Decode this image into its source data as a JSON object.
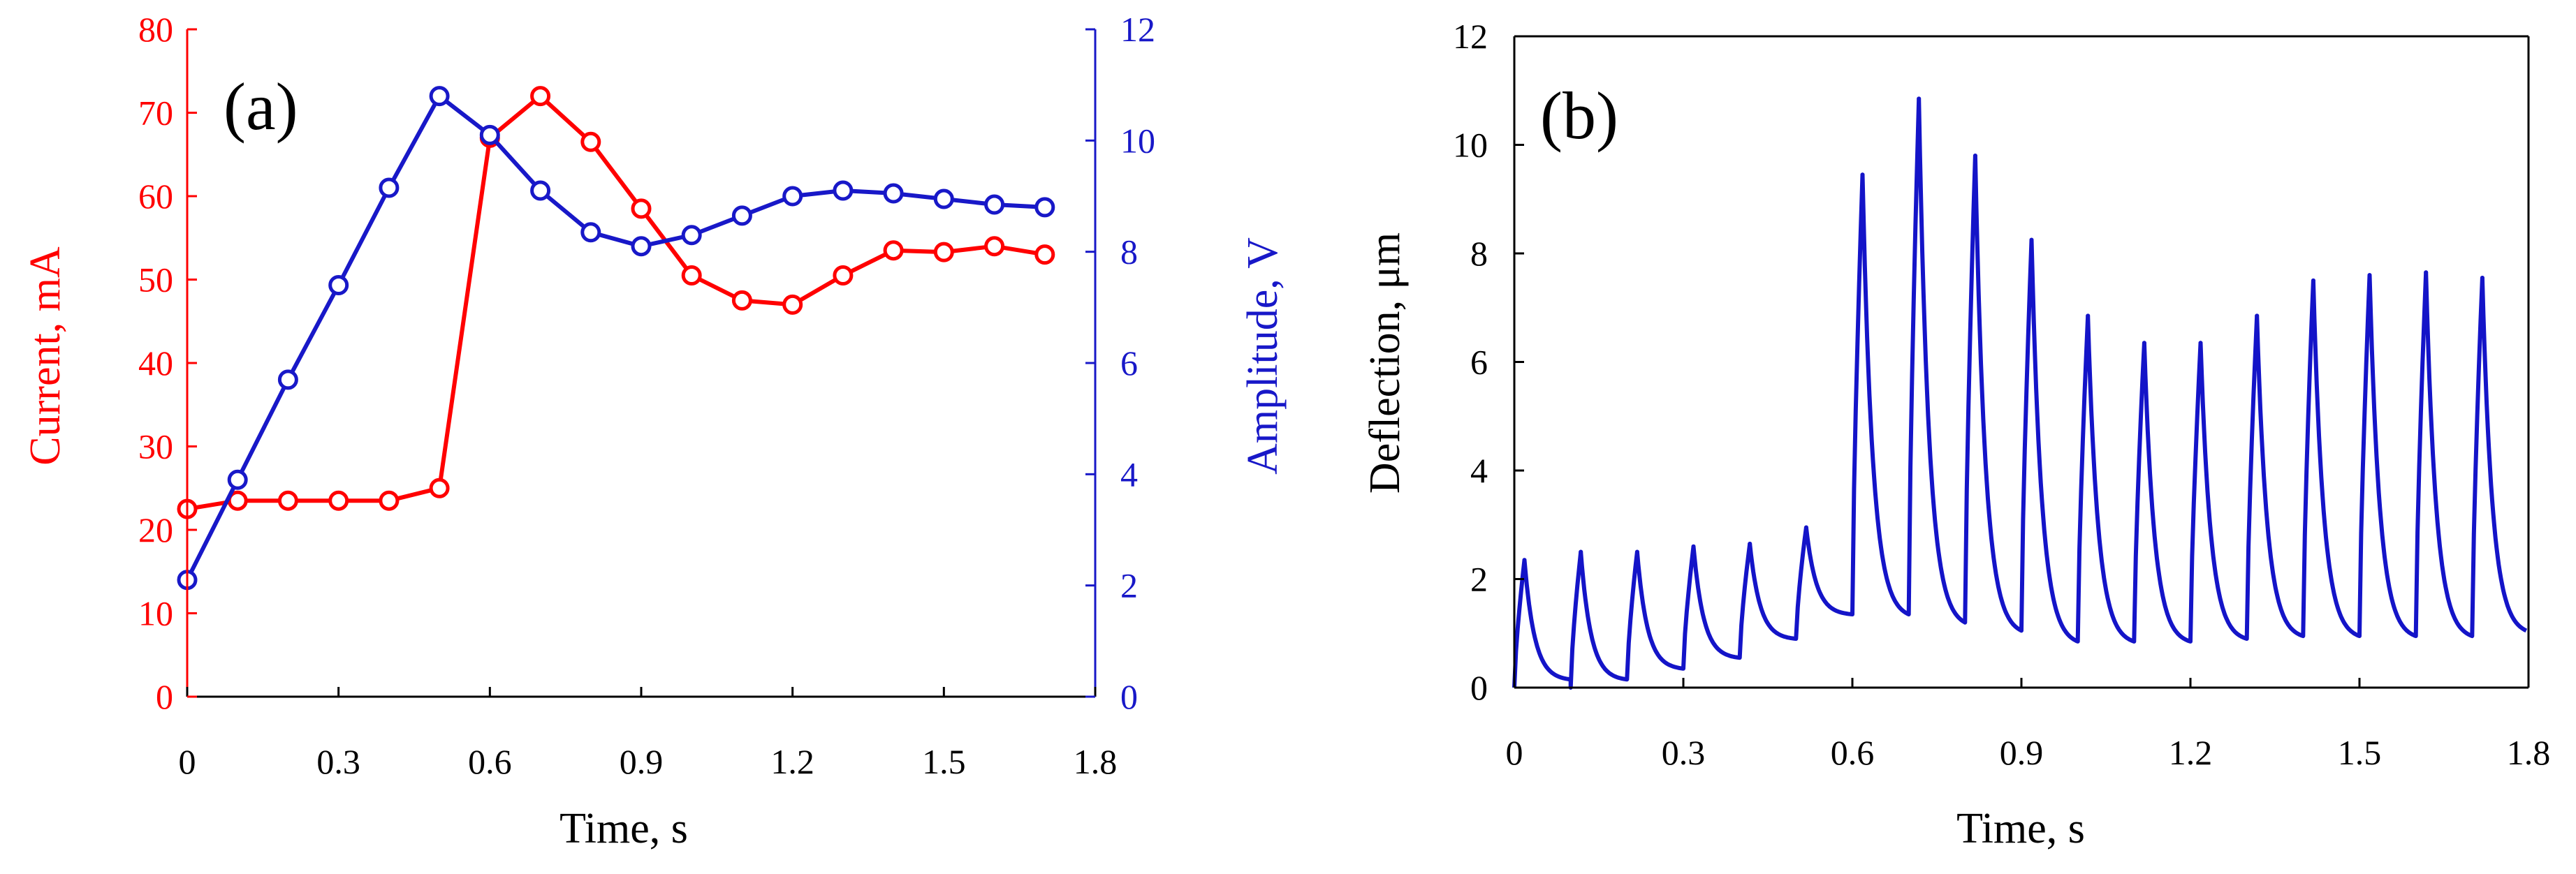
{
  "colors": {
    "current": "#ff0000",
    "amplitude": "#1818c8",
    "deflection": "#1414c8",
    "axis": "#000000"
  },
  "chart_data": [
    {
      "type": "line",
      "panel_label": "(a)",
      "xlabel": "Time, s",
      "ylabel_left": "Current, mA",
      "ylabel_right": "Amplitude, V",
      "xlim": [
        0,
        1.8
      ],
      "ylim_left": [
        0,
        80
      ],
      "ylim_right": [
        0,
        12
      ],
      "x_ticks": [
        "0",
        "0.3",
        "0.6",
        "0.9",
        "1.2",
        "1.5",
        "1.8"
      ],
      "y_ticks_left": [
        "0",
        "10",
        "20",
        "30",
        "40",
        "50",
        "60",
        "70",
        "80"
      ],
      "y_ticks_right": [
        "0",
        "2",
        "4",
        "6",
        "8",
        "10",
        "12"
      ],
      "grid": false,
      "series": [
        {
          "name": "Current",
          "axis": "left",
          "marker": "open-circle",
          "x": [
            0,
            0.1,
            0.2,
            0.3,
            0.4,
            0.5,
            0.6,
            0.7,
            0.8,
            0.9,
            1.0,
            1.1,
            1.2,
            1.3,
            1.4,
            1.5,
            1.6,
            1.7
          ],
          "values": [
            22.5,
            23.5,
            23.5,
            23.5,
            23.5,
            25,
            67,
            72,
            66.5,
            58.5,
            50.5,
            47.5,
            47,
            50.5,
            53.5,
            53.3,
            54,
            53
          ]
        },
        {
          "name": "Amplitude",
          "axis": "right",
          "marker": "open-circle",
          "x": [
            0,
            0.1,
            0.2,
            0.3,
            0.4,
            0.5,
            0.6,
            0.7,
            0.8,
            0.9,
            1.0,
            1.1,
            1.2,
            1.3,
            1.4,
            1.5,
            1.6,
            1.7
          ],
          "values": [
            2.1,
            3.9,
            5.7,
            7.4,
            9.15,
            10.8,
            10.1,
            9.1,
            8.35,
            8.1,
            8.3,
            8.65,
            9.0,
            9.1,
            9.05,
            8.95,
            8.85,
            8.8
          ]
        }
      ]
    },
    {
      "type": "line",
      "panel_label": "(b)",
      "xlabel": "Time, s",
      "ylabel": "Deflection, μm",
      "xlim": [
        0,
        1.8
      ],
      "ylim": [
        0,
        12
      ],
      "x_ticks": [
        "0",
        "0.3",
        "0.6",
        "0.9",
        "1.2",
        "1.5",
        "1.8"
      ],
      "y_ticks": [
        "0",
        "2",
        "4",
        "6",
        "8",
        "10",
        "12"
      ],
      "grid": false,
      "pulse_period": 0.1,
      "pulses": [
        {
          "onset": 0.0,
          "start": 0.0,
          "peak": 2.35,
          "end": 0.15
        },
        {
          "onset": 0.1,
          "start": 0.0,
          "peak": 2.5,
          "end": 0.15
        },
        {
          "onset": 0.2,
          "start": 0.15,
          "peak": 2.5,
          "end": 0.35
        },
        {
          "onset": 0.3,
          "start": 0.35,
          "peak": 2.6,
          "end": 0.55
        },
        {
          "onset": 0.4,
          "start": 0.55,
          "peak": 2.65,
          "end": 0.9
        },
        {
          "onset": 0.5,
          "start": 0.9,
          "peak": 2.95,
          "end": 1.35
        },
        {
          "onset": 0.6,
          "start": 1.35,
          "peak": 9.45,
          "end": 1.35
        },
        {
          "onset": 0.7,
          "start": 1.35,
          "peak": 10.85,
          "end": 1.2
        },
        {
          "onset": 0.8,
          "start": 1.2,
          "peak": 9.8,
          "end": 1.05
        },
        {
          "onset": 0.9,
          "start": 1.05,
          "peak": 8.25,
          "end": 0.85
        },
        {
          "onset": 1.0,
          "start": 0.85,
          "peak": 6.85,
          "end": 0.85
        },
        {
          "onset": 1.1,
          "start": 0.85,
          "peak": 6.35,
          "end": 0.85
        },
        {
          "onset": 1.2,
          "start": 0.85,
          "peak": 6.35,
          "end": 0.9
        },
        {
          "onset": 1.3,
          "start": 0.9,
          "peak": 6.85,
          "end": 0.95
        },
        {
          "onset": 1.4,
          "start": 0.95,
          "peak": 7.5,
          "end": 0.95
        },
        {
          "onset": 1.5,
          "start": 0.95,
          "peak": 7.6,
          "end": 0.95
        },
        {
          "onset": 1.6,
          "start": 0.95,
          "peak": 7.65,
          "end": 0.95
        },
        {
          "onset": 1.7,
          "start": 0.95,
          "peak": 7.55,
          "end": 1.05
        }
      ]
    }
  ]
}
